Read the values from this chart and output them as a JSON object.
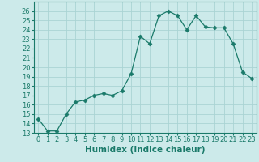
{
  "x": [
    0,
    1,
    2,
    3,
    4,
    5,
    6,
    7,
    8,
    9,
    10,
    11,
    12,
    13,
    14,
    15,
    16,
    17,
    18,
    19,
    20,
    21,
    22,
    23
  ],
  "y": [
    14.5,
    13.2,
    13.2,
    15.0,
    16.3,
    16.5,
    17.0,
    17.2,
    17.0,
    17.5,
    19.3,
    23.3,
    22.5,
    25.5,
    26.0,
    25.5,
    24.0,
    25.5,
    24.3,
    24.2,
    24.2,
    22.5,
    19.5,
    18.8
  ],
  "xlabel": "Humidex (Indice chaleur)",
  "line_color": "#1a7a6a",
  "marker": "D",
  "marker_size": 2.5,
  "bg_color": "#cceaea",
  "grid_color": "#aad4d4",
  "ylim": [
    13,
    27
  ],
  "xlim": [
    -0.5,
    23.5
  ],
  "yticks": [
    13,
    14,
    15,
    16,
    17,
    18,
    19,
    20,
    21,
    22,
    23,
    24,
    25,
    26
  ],
  "xticks": [
    0,
    1,
    2,
    3,
    4,
    5,
    6,
    7,
    8,
    9,
    10,
    11,
    12,
    13,
    14,
    15,
    16,
    17,
    18,
    19,
    20,
    21,
    22,
    23
  ],
  "tick_fontsize": 6.0,
  "xlabel_fontsize": 7.5
}
